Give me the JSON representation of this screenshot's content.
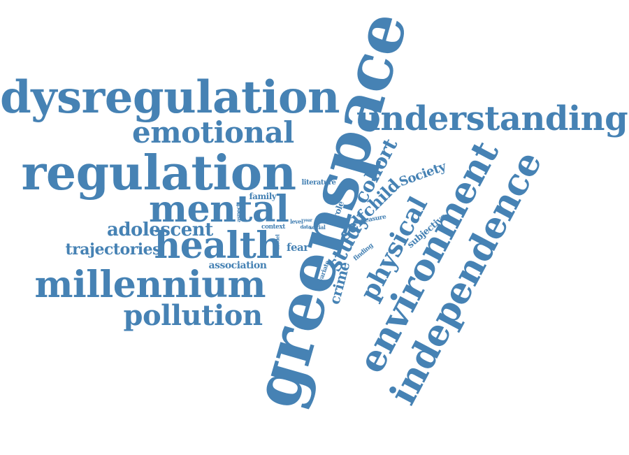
{
  "color": "#4682b4",
  "words": [
    {
      "text": "greenspace",
      "orient": "up"
    },
    {
      "text": "dysregulation",
      "orient": "h"
    },
    {
      "text": "understanding",
      "orient": "h"
    },
    {
      "text": "regulation",
      "orient": "h"
    },
    {
      "text": "emotional",
      "orient": "h"
    },
    {
      "text": "mental",
      "orient": "h"
    },
    {
      "text": "health",
      "orient": "h"
    },
    {
      "text": "millennium",
      "orient": "h"
    },
    {
      "text": "pollution",
      "orient": "h"
    },
    {
      "text": "adolescent",
      "orient": "h"
    },
    {
      "text": "trajectories",
      "orient": "h"
    },
    {
      "text": "association",
      "orient": "h"
    },
    {
      "text": "environment",
      "orient": "up"
    },
    {
      "text": "independence",
      "orient": "up"
    },
    {
      "text": "physical",
      "orient": "up"
    },
    {
      "text": "study",
      "orient": "up"
    },
    {
      "text": "cohort",
      "orient": "up"
    },
    {
      "text": "selfchild",
      "orient": "up"
    },
    {
      "text": "Society",
      "orient": "up"
    },
    {
      "text": "crime",
      "orient": "up"
    },
    {
      "text": "subjective",
      "orient": "up"
    },
    {
      "text": "role",
      "orient": "up"
    },
    {
      "text": "measure",
      "orient": "up"
    },
    {
      "text": "finding",
      "orient": "up"
    },
    {
      "text": "covariate",
      "orient": "up"
    },
    {
      "text": "fear",
      "orient": "h"
    },
    {
      "text": "family",
      "orient": "h"
    },
    {
      "text": "literature",
      "orient": "h"
    },
    {
      "text": "context",
      "orient": "h"
    },
    {
      "text": "level",
      "orient": "h"
    },
    {
      "text": "data",
      "orient": "h"
    },
    {
      "text": "social",
      "orient": "h"
    },
    {
      "text": "year",
      "orient": "h"
    },
    {
      "text": "aspect",
      "orient": "up"
    },
    {
      "text": "model",
      "orient": "up"
    }
  ]
}
